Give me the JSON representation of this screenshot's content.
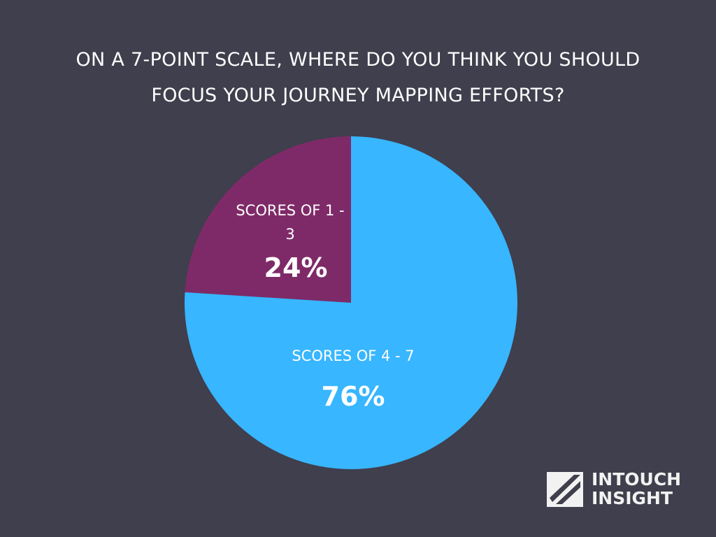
{
  "chart_data": {
    "type": "pie",
    "title": "ON A 7-POINT SCALE, WHERE DO YOU THINK YOU SHOULD FOCUS YOUR JOURNEY MAPPING EFFORTS?",
    "categories": [
      "SCORES OF 4 - 7",
      "SCORES OF 1 - 3"
    ],
    "values": [
      76,
      24
    ],
    "value_labels": [
      "76%",
      "24%"
    ],
    "colors": [
      "#38b6ff",
      "#7f2a68"
    ]
  },
  "logo": {
    "lines": [
      "INTOUCH",
      "INSIGHT"
    ]
  }
}
